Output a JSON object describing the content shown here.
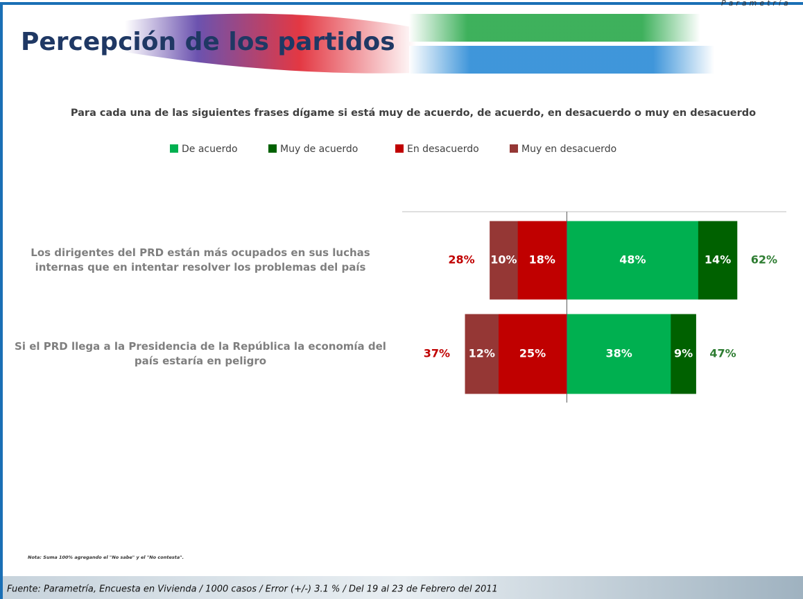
{
  "header": {
    "brand": "Parametría",
    "title": "Percepción de los partidos"
  },
  "chart_data": {
    "type": "diverging_bar",
    "subtitle": "Para cada una de las siguientes frases dígame si está muy de acuerdo, de acuerdo, en desacuerdo o muy en desacuerdo",
    "categories": [
      "Los dirigentes del PRD están más ocupados en sus luchas internas que en intentar resolver los problemas del país",
      "Si el PRD llega a la Presidencia de la República la economía del país estaría en peligro"
    ],
    "series": [
      {
        "name": "De acuerdo",
        "color": "#00b050",
        "values": [
          48,
          38
        ],
        "value_labels": [
          "48%",
          "38%"
        ]
      },
      {
        "name": "Muy de acuerdo",
        "color": "#006100",
        "values": [
          14,
          9
        ],
        "value_labels": [
          "14%",
          "9%"
        ]
      },
      {
        "name": "En desacuerdo",
        "color": "#c00000",
        "values": [
          -18,
          -25
        ],
        "value_labels": [
          "18%",
          "25%"
        ]
      },
      {
        "name": "Muy en desacuerdo",
        "color": "#953735",
        "values": [
          -10,
          -12
        ],
        "value_labels": [
          "10%",
          "12%"
        ]
      }
    ],
    "totals_disagree": {
      "color": "#c00000",
      "values": [
        28,
        37
      ],
      "value_labels": [
        "28%",
        "37%"
      ]
    },
    "totals_agree": {
      "color": "#2e7d32",
      "values": [
        62,
        47
      ],
      "value_labels": [
        "62%",
        "47%"
      ]
    },
    "xlim": [
      -60,
      80
    ]
  },
  "note": "Nota: Suma 100% agregando el \"No sabe\" y el \"No contesta\".",
  "source": "Fuente: Parametría, Encuesta en Vivienda / 1000 casos / Error (+/-) 3.1 % / Del 19 al 23 de Febrero del 2011"
}
